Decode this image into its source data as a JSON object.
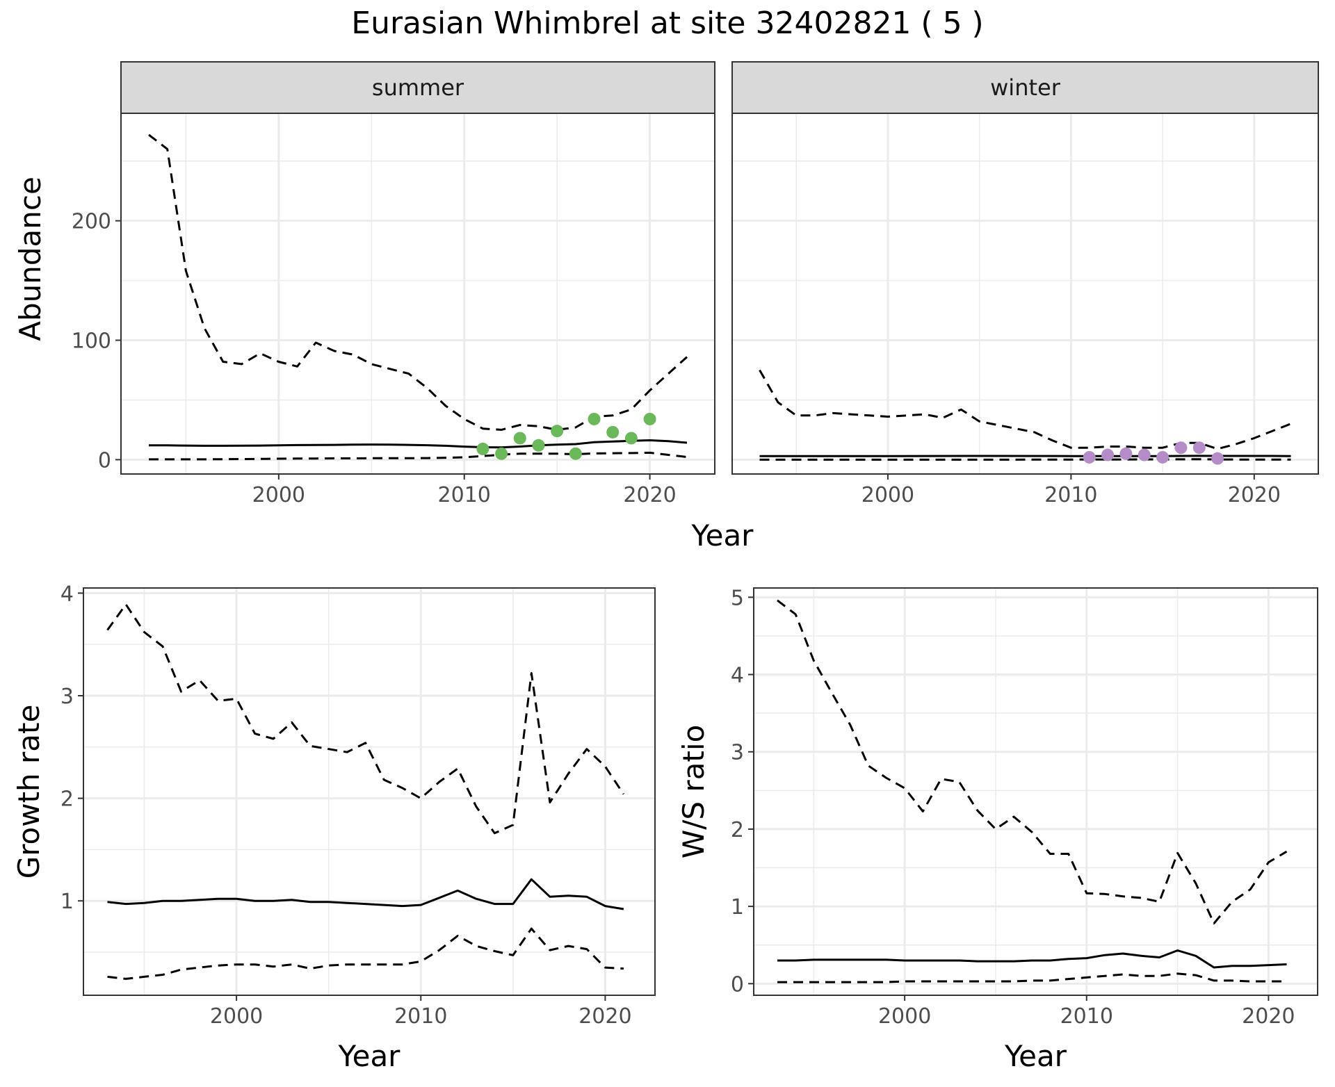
{
  "title": "Eurasian Whimbrel at site 32402821 ( 5 )",
  "colors": {
    "summer_points": "#6ab85a",
    "winter_points": "#b48cc8",
    "strip": "#d9d9d9",
    "grid": "#ebebeb"
  },
  "chart_data": [
    {
      "type": "line",
      "panel": "summer",
      "strip_label": "summer",
      "xlabel": "Year",
      "ylabel": "Abundance",
      "xlim": [
        1991.5,
        2023.5
      ],
      "ylim": [
        -12,
        290
      ],
      "xticks": [
        2000,
        2010,
        2020
      ],
      "yticks": [
        0,
        100,
        200
      ],
      "grid": true,
      "series": [
        {
          "style": "solid",
          "x": [
            1993,
            1994,
            1995,
            1996,
            1997,
            1998,
            1999,
            2000,
            2001,
            2002,
            2003,
            2004,
            2005,
            2006,
            2007,
            2008,
            2009,
            2010,
            2011,
            2012,
            2013,
            2014,
            2015,
            2016,
            2017,
            2018,
            2019,
            2020,
            2021,
            2022
          ],
          "y": [
            12,
            12,
            11.8,
            11.6,
            11.6,
            11.7,
            11.8,
            12,
            12.2,
            12.3,
            12.4,
            12.6,
            12.7,
            12.6,
            12.4,
            12.1,
            11.6,
            10.9,
            10.4,
            10.3,
            11,
            12,
            12.6,
            13,
            14.6,
            15.2,
            15.8,
            16.2,
            15.5,
            14.2
          ]
        },
        {
          "style": "dashed",
          "x": [
            1993,
            1994,
            1995,
            1996,
            1997,
            1998,
            1999,
            2000,
            2001,
            2002,
            2003,
            2004,
            2005,
            2006,
            2007,
            2008,
            2009,
            2010,
            2011,
            2012,
            2013,
            2014,
            2015,
            2016,
            2017,
            2018,
            2019,
            2020,
            2021,
            2022
          ],
          "y": [
            272,
            260,
            158,
            110,
            82,
            80,
            89,
            82,
            78,
            98,
            91,
            88,
            80,
            76,
            72,
            60,
            45,
            34,
            26,
            25,
            29,
            28,
            25,
            27,
            36,
            37,
            42,
            58,
            72,
            86
          ]
        },
        {
          "style": "dashed",
          "x": [
            1993,
            1994,
            1995,
            1996,
            1997,
            1998,
            1999,
            2000,
            2001,
            2002,
            2003,
            2004,
            2005,
            2006,
            2007,
            2008,
            2009,
            2010,
            2011,
            2012,
            2013,
            2014,
            2015,
            2016,
            2017,
            2018,
            2019,
            2020,
            2021,
            2022
          ],
          "y": [
            0.3,
            0.3,
            0.3,
            0.3,
            0.4,
            0.5,
            0.6,
            0.8,
            0.9,
            1,
            1.1,
            1.1,
            1.2,
            1.2,
            1.2,
            1.3,
            1.6,
            2,
            3,
            4.2,
            5,
            5,
            5,
            4.5,
            5.2,
            5.4,
            5.5,
            5.8,
            4,
            2.2
          ]
        }
      ],
      "points": {
        "x": [
          2011,
          2012,
          2013,
          2014,
          2015,
          2016,
          2017,
          2018,
          2019,
          2020
        ],
        "y": [
          9,
          5,
          18,
          12,
          24,
          5,
          34,
          23,
          18,
          34
        ]
      }
    },
    {
      "type": "line",
      "panel": "winter",
      "strip_label": "winter",
      "xlabel": "Year",
      "ylabel": "Abundance",
      "xlim": [
        1991.5,
        2023.5
      ],
      "ylim": [
        -12,
        290
      ],
      "xticks": [
        2000,
        2010,
        2020
      ],
      "yticks": [
        0,
        100,
        200
      ],
      "grid": true,
      "series": [
        {
          "style": "solid",
          "x": [
            1993,
            1995,
            2000,
            2005,
            2010,
            2011,
            2012,
            2013,
            2014,
            2015,
            2016,
            2017,
            2018,
            2019,
            2020,
            2021,
            2022
          ],
          "y": [
            3,
            3,
            3,
            3.1,
            3,
            3,
            3,
            3,
            3,
            3,
            3.1,
            3.2,
            3.1,
            3.1,
            3.1,
            3.1,
            3
          ]
        },
        {
          "style": "dashed",
          "x": [
            1993,
            1994,
            1995,
            1996,
            1997,
            1998,
            1999,
            2000,
            2001,
            2002,
            2003,
            2004,
            2005,
            2006,
            2007,
            2008,
            2009,
            2010,
            2011,
            2012,
            2013,
            2014,
            2015,
            2016,
            2017,
            2018,
            2019,
            2020,
            2021,
            2022
          ],
          "y": [
            75,
            48,
            37,
            37,
            39,
            38,
            37,
            36,
            37,
            38,
            35,
            42,
            32,
            29,
            26,
            23,
            16,
            10,
            10,
            11,
            11,
            10,
            10,
            14,
            14,
            9,
            13,
            18,
            24,
            30
          ]
        },
        {
          "style": "dashed",
          "x": [
            1993,
            1995,
            2000,
            2005,
            2010,
            2015,
            2016,
            2017,
            2018,
            2019,
            2020,
            2021,
            2022
          ],
          "y": [
            0,
            0,
            0,
            0,
            0.1,
            0.2,
            0.3,
            0.4,
            0.2,
            0.1,
            0.1,
            0.1,
            0.1
          ]
        }
      ],
      "points": {
        "x": [
          2011,
          2012,
          2013,
          2014,
          2015,
          2016,
          2017,
          2018
        ],
        "y": [
          2,
          4,
          5,
          4,
          2,
          10,
          10,
          1
        ]
      }
    },
    {
      "type": "line",
      "panel": "growth",
      "xlabel": "Year",
      "ylabel": "Growth rate",
      "xlim": [
        1991.7,
        2022.7
      ],
      "ylim": [
        0.08,
        4.05
      ],
      "xticks": [
        2000,
        2010,
        2020
      ],
      "yticks": [
        1,
        2,
        3,
        4
      ],
      "grid": true,
      "series": [
        {
          "style": "solid",
          "x": [
            1993,
            1994,
            1995,
            1996,
            1997,
            1998,
            1999,
            2000,
            2001,
            2002,
            2003,
            2004,
            2005,
            2006,
            2007,
            2008,
            2009,
            2010,
            2011,
            2012,
            2013,
            2014,
            2015,
            2016,
            2017,
            2018,
            2019,
            2020,
            2021
          ],
          "y": [
            0.99,
            0.97,
            0.98,
            1,
            1,
            1.01,
            1.02,
            1.02,
            1,
            1,
            1.01,
            0.99,
            0.99,
            0.98,
            0.97,
            0.96,
            0.95,
            0.96,
            1.03,
            1.1,
            1.02,
            0.97,
            0.97,
            1.21,
            1.04,
            1.05,
            1.04,
            0.95,
            0.92
          ]
        },
        {
          "style": "dashed",
          "x": [
            1993,
            1994,
            1995,
            1996,
            1997,
            1998,
            1999,
            2000,
            2001,
            2002,
            2003,
            2004,
            2005,
            2006,
            2007,
            2008,
            2009,
            2010,
            2011,
            2012,
            2013,
            2014,
            2015,
            2016,
            2017,
            2018,
            2019,
            2020,
            2021
          ],
          "y": [
            3.64,
            3.89,
            3.62,
            3.48,
            3.04,
            3.15,
            2.95,
            2.97,
            2.63,
            2.58,
            2.74,
            2.51,
            2.48,
            2.45,
            2.54,
            2.18,
            2.1,
            2,
            2.16,
            2.29,
            1.92,
            1.66,
            1.74,
            3.22,
            1.96,
            2.24,
            2.48,
            2.31,
            2.04
          ]
        },
        {
          "style": "dashed",
          "x": [
            1993,
            1994,
            1995,
            1996,
            1997,
            1998,
            1999,
            2000,
            2001,
            2002,
            2003,
            2004,
            2005,
            2006,
            2007,
            2008,
            2009,
            2010,
            2011,
            2012,
            2013,
            2014,
            2015,
            2016,
            2017,
            2018,
            2019,
            2020,
            2021
          ],
          "y": [
            0.26,
            0.24,
            0.26,
            0.28,
            0.33,
            0.35,
            0.37,
            0.38,
            0.38,
            0.36,
            0.38,
            0.34,
            0.37,
            0.38,
            0.38,
            0.38,
            0.38,
            0.41,
            0.52,
            0.66,
            0.56,
            0.51,
            0.47,
            0.73,
            0.52,
            0.56,
            0.53,
            0.35,
            0.34
          ]
        }
      ]
    },
    {
      "type": "line",
      "panel": "ratio",
      "xlabel": "Year",
      "ylabel": "W/S ratio",
      "xlim": [
        1991.7,
        2022.7
      ],
      "ylim": [
        -0.15,
        5.12
      ],
      "xticks": [
        2000,
        2010,
        2020
      ],
      "yticks": [
        0,
        1,
        2,
        3,
        4,
        5
      ],
      "grid": true,
      "series": [
        {
          "style": "solid",
          "x": [
            1993,
            1994,
            1995,
            1996,
            1997,
            1998,
            1999,
            2000,
            2001,
            2002,
            2003,
            2004,
            2005,
            2006,
            2007,
            2008,
            2009,
            2010,
            2011,
            2012,
            2013,
            2014,
            2015,
            2016,
            2017,
            2018,
            2019,
            2020,
            2021
          ],
          "y": [
            0.3,
            0.3,
            0.31,
            0.31,
            0.31,
            0.31,
            0.31,
            0.3,
            0.3,
            0.3,
            0.3,
            0.29,
            0.29,
            0.29,
            0.3,
            0.3,
            0.32,
            0.33,
            0.37,
            0.39,
            0.36,
            0.34,
            0.43,
            0.36,
            0.21,
            0.23,
            0.23,
            0.24,
            0.25
          ]
        },
        {
          "style": "dashed",
          "x": [
            1993,
            1994,
            1995,
            1996,
            1997,
            1998,
            1999,
            2000,
            2001,
            2002,
            2003,
            2004,
            2005,
            2006,
            2007,
            2008,
            2009,
            2010,
            2011,
            2012,
            2013,
            2014,
            2015,
            2016,
            2017,
            2018,
            2019,
            2020,
            2021
          ],
          "y": [
            4.96,
            4.78,
            4.18,
            3.76,
            3.35,
            2.82,
            2.66,
            2.53,
            2.23,
            2.65,
            2.61,
            2.24,
            2.0,
            2.16,
            1.96,
            1.68,
            1.68,
            1.17,
            1.16,
            1.13,
            1.11,
            1.06,
            1.69,
            1.3,
            0.78,
            1.06,
            1.22,
            1.57,
            1.71
          ]
        },
        {
          "style": "dashed",
          "x": [
            1993,
            1994,
            1995,
            1996,
            1997,
            1998,
            1999,
            2000,
            2001,
            2002,
            2003,
            2004,
            2005,
            2006,
            2007,
            2008,
            2009,
            2010,
            2011,
            2012,
            2013,
            2014,
            2015,
            2016,
            2017,
            2018,
            2019,
            2020,
            2021
          ],
          "y": [
            0.02,
            0.02,
            0.02,
            0.02,
            0.02,
            0.02,
            0.02,
            0.03,
            0.03,
            0.03,
            0.03,
            0.03,
            0.03,
            0.03,
            0.04,
            0.04,
            0.06,
            0.08,
            0.1,
            0.12,
            0.1,
            0.1,
            0.13,
            0.11,
            0.04,
            0.04,
            0.03,
            0.03,
            0.03
          ]
        }
      ]
    }
  ],
  "top_xlabel": "Year"
}
